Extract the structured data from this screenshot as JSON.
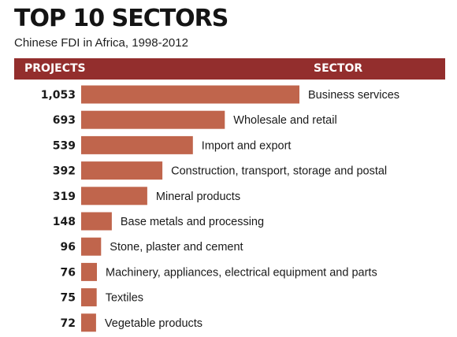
{
  "header": {
    "title": "TOP 10 SECTORS",
    "subtitle": "Chinese FDI in Africa, 1998-2012",
    "projects_label": "PROJECTS",
    "sector_label": "SECTOR"
  },
  "colors": {
    "bar": "#c0654c",
    "header_bar": "#932e2d"
  },
  "chart_data": {
    "type": "bar",
    "orientation": "horizontal",
    "title": "TOP 10 SECTORS",
    "subtitle": "Chinese FDI in Africa, 1998-2012",
    "categories": [
      "Business services",
      "Wholesale and retail",
      "Import and export",
      "Construction, transport, storage and postal",
      "Mineral products",
      "Base metals and processing",
      "Stone, plaster and cement",
      "Machinery, appliances, electrical equipment and parts",
      "Textiles",
      "Vegetable products"
    ],
    "values": [
      1053,
      693,
      539,
      392,
      319,
      148,
      96,
      76,
      75,
      72
    ],
    "value_labels": [
      "1,053",
      "693",
      "539",
      "392",
      "319",
      "148",
      "96",
      "76",
      "75",
      "72"
    ],
    "xlabel": "",
    "ylabel": "",
    "grid": false,
    "legend": "none"
  }
}
